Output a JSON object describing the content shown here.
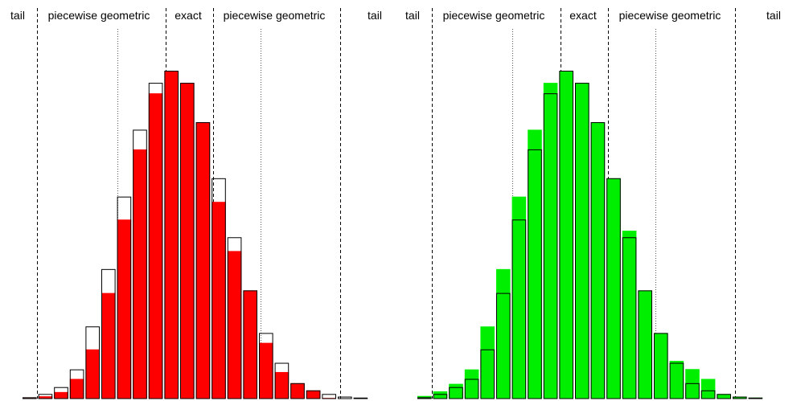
{
  "colors": {
    "left_fill": "#ff0000",
    "right_fill": "#00ee00",
    "outline": "#000000",
    "background": "#ffffff"
  },
  "panels": [
    {
      "id": "left",
      "labels": [
        "tail",
        "piecewise geometric",
        "exact",
        "piecewise geometric",
        "tail"
      ],
      "exact_heights": [
        0.004,
        0.014,
        0.035,
        0.089,
        0.22,
        0.395,
        0.616,
        0.82,
        0.963,
        1.0,
        0.963,
        0.843,
        0.672,
        0.492,
        0.33,
        0.2,
        0.109,
        0.047,
        0.025,
        0.014,
        0.006,
        0.003
      ],
      "approx_heights": [
        0.002,
        0.007,
        0.02,
        0.06,
        0.15,
        0.322,
        0.546,
        0.76,
        0.931,
        1.0,
        0.963,
        0.843,
        0.6,
        0.45,
        0.33,
        0.17,
        0.081,
        0.047,
        0.025,
        0.002,
        0.0,
        0.0
      ]
    },
    {
      "id": "right",
      "labels": [
        "tail",
        "piecewise geometric",
        "exact",
        "piecewise geometric",
        "tail"
      ],
      "exact_heights": [
        0.004,
        0.014,
        0.035,
        0.06,
        0.15,
        0.322,
        0.546,
        0.76,
        0.931,
        1.0,
        0.963,
        0.843,
        0.672,
        0.492,
        0.33,
        0.2,
        0.109,
        0.047,
        0.025,
        0.014,
        0.006,
        0.003
      ],
      "approx_heights": [
        0.008,
        0.022,
        0.045,
        0.089,
        0.22,
        0.395,
        0.616,
        0.82,
        0.963,
        1.0,
        0.963,
        0.843,
        0.672,
        0.512,
        0.33,
        0.2,
        0.115,
        0.09,
        0.06,
        0.014,
        0.006,
        0.003
      ]
    }
  ]
}
